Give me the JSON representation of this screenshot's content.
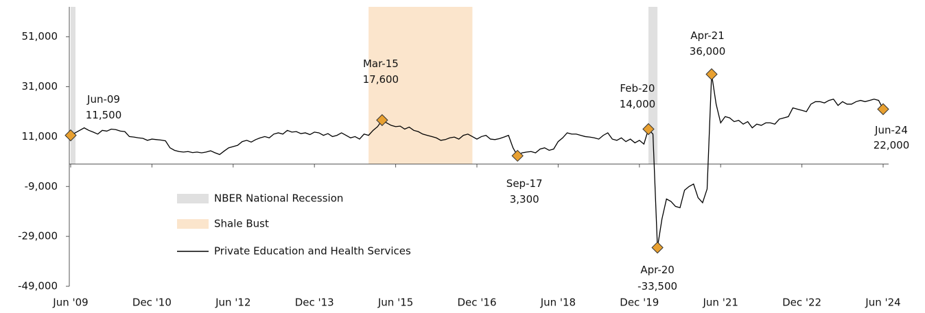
{
  "chart_data": {
    "type": "line",
    "categories": [
      "Jun '09",
      null,
      null,
      null,
      null,
      null,
      null,
      null,
      null,
      null,
      null,
      null,
      null,
      null,
      null,
      null,
      null,
      null,
      "Dec '10",
      null,
      null,
      null,
      null,
      null,
      null,
      null,
      null,
      null,
      null,
      null,
      null,
      null,
      null,
      null,
      null,
      null,
      "Jun '12",
      null,
      null,
      null,
      null,
      null,
      null,
      null,
      null,
      null,
      null,
      null,
      null,
      null,
      null,
      null,
      null,
      null,
      "Dec '13",
      null,
      null,
      null,
      null,
      null,
      null,
      null,
      null,
      null,
      null,
      null,
      null,
      null,
      null,
      null,
      null,
      null,
      "Jun '15",
      null,
      null,
      null,
      null,
      null,
      null,
      null,
      null,
      null,
      null,
      null,
      null,
      null,
      null,
      null,
      null,
      null,
      "Dec '16",
      null,
      null,
      null,
      null,
      null,
      null,
      null,
      null,
      null,
      null,
      null,
      null,
      null,
      null,
      null,
      null,
      null,
      "Jun '18",
      null,
      null,
      null,
      null,
      null,
      null,
      null,
      null,
      null,
      null,
      null,
      null,
      null,
      null,
      null,
      null,
      null,
      "Dec '19",
      null,
      null,
      null,
      null,
      null,
      null,
      null,
      null,
      null,
      null,
      null,
      null,
      null,
      null,
      null,
      null,
      null,
      "Jun '21",
      null,
      null,
      null,
      null,
      null,
      null,
      null,
      null,
      null,
      null,
      null,
      null,
      null,
      null,
      null,
      null,
      null,
      "Dec '22",
      null,
      null,
      null,
      null,
      null,
      null,
      null,
      null,
      null,
      null,
      null,
      null,
      null,
      null,
      null,
      null,
      null,
      "Jun '24"
    ],
    "series": [
      {
        "name": "Private Education and Health Services",
        "color": "#000000",
        "values": [
          11500,
          12500,
          13500,
          14500,
          13500,
          12800,
          12000,
          13500,
          13200,
          14000,
          13800,
          13200,
          13000,
          11000,
          10800,
          10500,
          10300,
          9500,
          10000,
          9800,
          9600,
          9300,
          6500,
          5500,
          5000,
          4800,
          5000,
          4600,
          4800,
          4500,
          4800,
          5300,
          4500,
          3800,
          5200,
          6500,
          7000,
          7500,
          9000,
          9500,
          8800,
          9800,
          10500,
          11000,
          10500,
          12000,
          12500,
          12000,
          13500,
          12800,
          13000,
          12200,
          12500,
          11800,
          12800,
          12500,
          11500,
          12200,
          11000,
          11500,
          12500,
          11500,
          10500,
          11000,
          10000,
          12000,
          11500,
          13500,
          15000,
          17600,
          16500,
          15500,
          15000,
          15200,
          14000,
          14800,
          13500,
          13000,
          12000,
          11500,
          11000,
          10500,
          9500,
          9800,
          10500,
          10800,
          10000,
          11500,
          12000,
          11000,
          10000,
          11000,
          11500,
          10000,
          9800,
          10200,
          10800,
          11500,
          6500,
          3300,
          4500,
          4800,
          5000,
          4500,
          6000,
          6500,
          5500,
          6000,
          9000,
          10500,
          12500,
          12000,
          12000,
          11500,
          11000,
          10800,
          10500,
          10000,
          11500,
          12500,
          10000,
          9500,
          10500,
          9000,
          10000,
          8500,
          9500,
          8000,
          14000,
          12000,
          -33500,
          -22000,
          -14000,
          -15000,
          -17000,
          -17500,
          -10500,
          -9000,
          -8000,
          -13500,
          -15500,
          -10000,
          36000,
          24000,
          16500,
          19000,
          18500,
          17000,
          17500,
          16000,
          17000,
          14500,
          16000,
          15500,
          16500,
          16500,
          16000,
          18000,
          18500,
          19000,
          22500,
          22000,
          21500,
          21000,
          24000,
          25000,
          25000,
          24500,
          25500,
          26000,
          23500,
          25000,
          24000,
          24000,
          25000,
          25500,
          25000,
          25500,
          26000,
          25500,
          22000
        ]
      }
    ],
    "bands": [
      {
        "name": "NBER National Recession",
        "color": "#e0e0e0",
        "start": 0,
        "end": 1
      },
      {
        "name": "Shale Bust",
        "color": "#fbe5cc",
        "start": 66,
        "end": 89
      },
      {
        "name": "NBER National Recession",
        "color": "#e0e0e0",
        "start": 128,
        "end": 130
      }
    ],
    "annotations": [
      {
        "index": 0,
        "label": "Jun-09",
        "value_label": "11,500"
      },
      {
        "index": 69,
        "label": "Mar-15",
        "value_label": "17,600"
      },
      {
        "index": 99,
        "label": "Sep-17",
        "value_label": "3,300"
      },
      {
        "index": 128,
        "label": "Feb-20",
        "value_label": "14,000"
      },
      {
        "index": 130,
        "label": "Apr-20",
        "value_label": "-33,500"
      },
      {
        "index": 142,
        "label": "Apr-21",
        "value_label": "36,000"
      },
      {
        "index": 180,
        "label": "Jun-24",
        "value_label": "22,000"
      }
    ],
    "marker_color": "#e8a030",
    "ylim": [
      -49000,
      63000
    ],
    "yticks": [
      {
        "value": -49000,
        "label": "-49,000"
      },
      {
        "value": -29000,
        "label": "-29,000"
      },
      {
        "value": -9000,
        "label": "-9,000"
      },
      {
        "value": 11000,
        "label": "11,000"
      },
      {
        "value": 31000,
        "label": "31,000"
      },
      {
        "value": 51000,
        "label": "51,000"
      }
    ]
  }
}
